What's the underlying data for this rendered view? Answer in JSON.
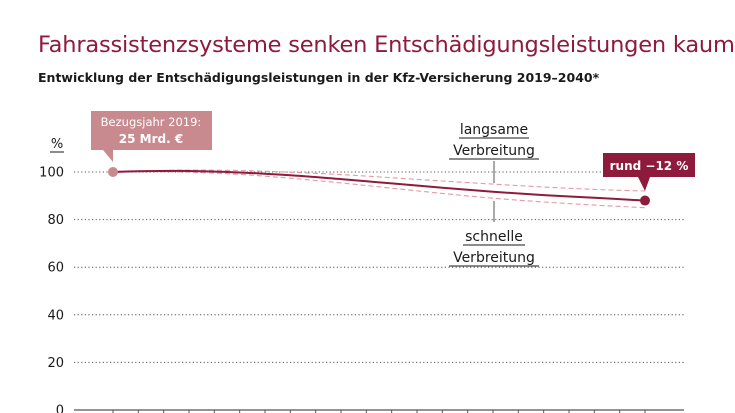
{
  "title": "Fahrassistenzsysteme senken Entschädigungsleistungen kaum",
  "subtitle": "Entwicklung der Entschädigungsleistungen in der Kfz-Versicherung 2019–2040*",
  "colors": {
    "accent": "#8e1b3c",
    "reference_box": "#c98a8f",
    "band": "#e59aa3",
    "grid": "#555555",
    "text": "#1a1a1a"
  },
  "chart_data": {
    "type": "line",
    "ylabel": "%",
    "y_ticks": [
      0,
      20,
      40,
      60,
      80,
      100
    ],
    "ylim": [
      0,
      100
    ],
    "xlim": [
      2019,
      2040
    ],
    "grid": true,
    "series": [
      {
        "x": [
          2019,
          2020,
          2022,
          2024,
          2026,
          2028,
          2030,
          2032,
          2034,
          2036,
          2038,
          2040
        ],
        "values": [
          100,
          100.3,
          100.4,
          99.8,
          98.6,
          97.0,
          95.2,
          93.4,
          91.7,
          90.3,
          89.2,
          88.0
        ]
      },
      {
        "name": "langsame Verbreitung",
        "x": [
          2019,
          2020,
          2022,
          2024,
          2026,
          2028,
          2030,
          2032,
          2034,
          2036,
          2038,
          2040
        ],
        "values": [
          100,
          100.4,
          100.8,
          100.6,
          99.9,
          98.9,
          97.6,
          96.2,
          94.9,
          93.7,
          92.7,
          92.0
        ]
      },
      {
        "name": "schnelle Verbreitung",
        "x": [
          2019,
          2020,
          2022,
          2024,
          2026,
          2028,
          2030,
          2032,
          2034,
          2036,
          2038,
          2040
        ],
        "values": [
          100,
          100.2,
          99.9,
          99.0,
          97.4,
          95.4,
          93.2,
          91.0,
          89.0,
          87.4,
          86.1,
          85.0
        ]
      }
    ],
    "annotations": {
      "reference_line1": "Bezugsjahr 2019:",
      "reference_line2": "25 Mrd. €",
      "slow_line1": "langsame",
      "slow_line2": "Verbreitung",
      "fast_line1": "schnelle",
      "fast_line2": "Verbreitung",
      "end": "rund −12 %"
    }
  }
}
